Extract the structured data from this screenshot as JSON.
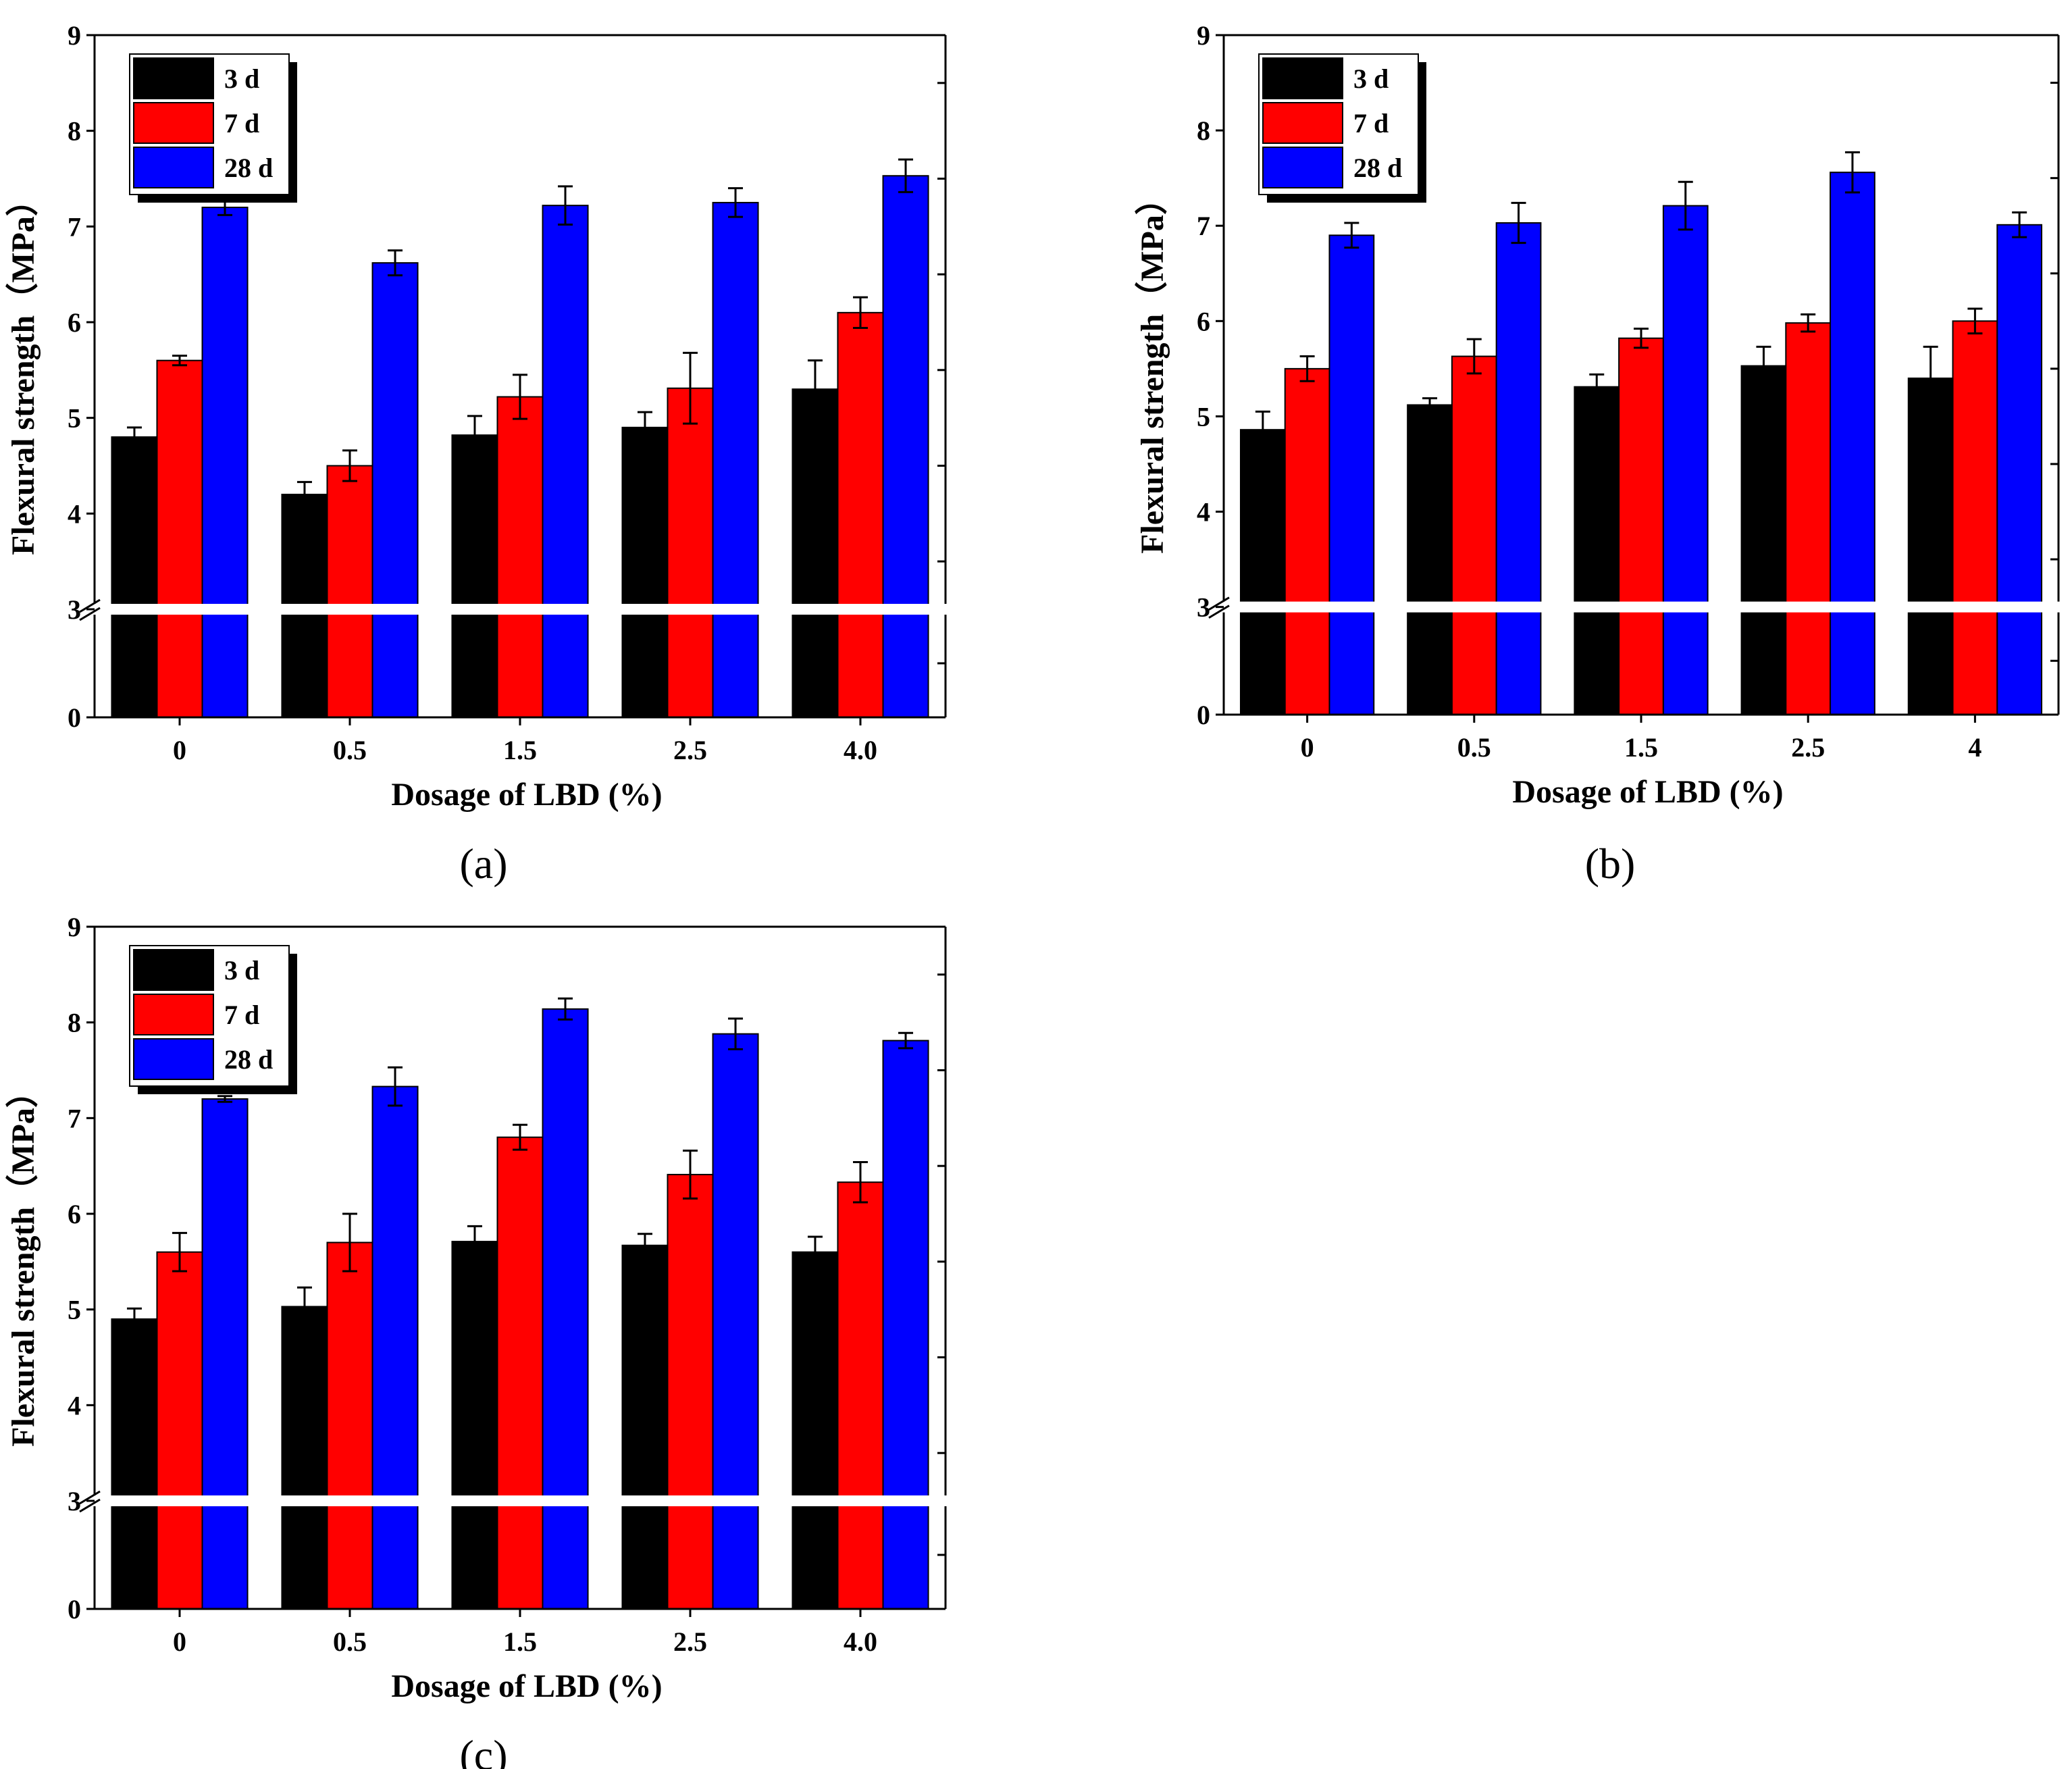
{
  "colors": {
    "3 d": "#000000",
    "7 d": "#ff0000",
    "28 d": "#0000ff",
    "axis": "#000000",
    "background": "#ffffff"
  },
  "chart_data": [
    {
      "type": "bar",
      "panel": "(a)",
      "categories": [
        "0",
        "0.5",
        "1.5",
        "2.5",
        "4.0"
      ],
      "xlabel": "Dosage of LBD (%)",
      "ylabel": "Flexural strength（MPa）",
      "yticks": [
        "0",
        "3",
        "4",
        "5",
        "6",
        "7",
        "8",
        "9"
      ],
      "ylim": [
        0,
        9
      ],
      "axis_break": [
        0,
        3
      ],
      "legend": [
        "3  d",
        "7  d",
        "28 d"
      ],
      "legend_position": "top-left",
      "series": [
        {
          "name": "3 d",
          "values": [
            4.8,
            4.2,
            4.82,
            4.9,
            5.3
          ],
          "errors": [
            0.1,
            0.13,
            0.2,
            0.16,
            0.3
          ]
        },
        {
          "name": "7 d",
          "values": [
            5.6,
            4.5,
            5.22,
            5.31,
            6.1
          ],
          "errors": [
            0.05,
            0.16,
            0.23,
            0.37,
            0.16
          ]
        },
        {
          "name": "28 d",
          "values": [
            7.2,
            6.62,
            7.22,
            7.25,
            7.53
          ],
          "errors": [
            0.08,
            0.13,
            0.2,
            0.15,
            0.17
          ]
        }
      ]
    },
    {
      "type": "bar",
      "panel": "(b)",
      "categories": [
        "0",
        "0.5",
        "1.5",
        "2.5",
        "4"
      ],
      "xlabel": "Dosage of LBD (%)",
      "ylabel": "Flexural strength（MPa）",
      "yticks": [
        "0",
        "3",
        "4",
        "5",
        "6",
        "7",
        "8",
        "9"
      ],
      "ylim": [
        0,
        9
      ],
      "axis_break": [
        0,
        3
      ],
      "legend": [
        "3  d",
        "7  d",
        "28 d"
      ],
      "legend_position": "top-left",
      "series": [
        {
          "name": "3 d",
          "values": [
            4.86,
            5.12,
            5.31,
            5.53,
            5.4
          ],
          "errors": [
            0.19,
            0.07,
            0.13,
            0.2,
            0.33
          ]
        },
        {
          "name": "7 d",
          "values": [
            5.5,
            5.63,
            5.82,
            5.98,
            6.0
          ],
          "errors": [
            0.13,
            0.18,
            0.1,
            0.09,
            0.13
          ]
        },
        {
          "name": "28 d",
          "values": [
            6.9,
            7.03,
            7.21,
            7.56,
            7.01
          ],
          "errors": [
            0.13,
            0.21,
            0.25,
            0.21,
            0.13
          ]
        }
      ]
    },
    {
      "type": "bar",
      "panel": "(c)",
      "categories": [
        "0",
        "0.5",
        "1.5",
        "2.5",
        "4.0"
      ],
      "xlabel": "Dosage of LBD (%)",
      "ylabel": "Flexural strength（MPa）",
      "yticks": [
        "0",
        "3",
        "4",
        "5",
        "6",
        "7",
        "8",
        "9"
      ],
      "ylim": [
        0,
        9
      ],
      "axis_break": [
        0,
        3
      ],
      "legend": [
        "3  d",
        "7  d",
        "28 d"
      ],
      "legend_position": "top-left",
      "series": [
        {
          "name": "3 d",
          "values": [
            4.9,
            5.03,
            5.71,
            5.67,
            5.6
          ],
          "errors": [
            0.11,
            0.2,
            0.16,
            0.12,
            0.16
          ]
        },
        {
          "name": "7 d",
          "values": [
            5.6,
            5.7,
            6.8,
            6.41,
            6.33
          ],
          "errors": [
            0.2,
            0.3,
            0.13,
            0.25,
            0.21
          ]
        },
        {
          "name": "28 d",
          "values": [
            7.2,
            7.33,
            8.14,
            7.88,
            7.81
          ],
          "errors": [
            0.03,
            0.2,
            0.11,
            0.16,
            0.08
          ]
        }
      ]
    }
  ]
}
